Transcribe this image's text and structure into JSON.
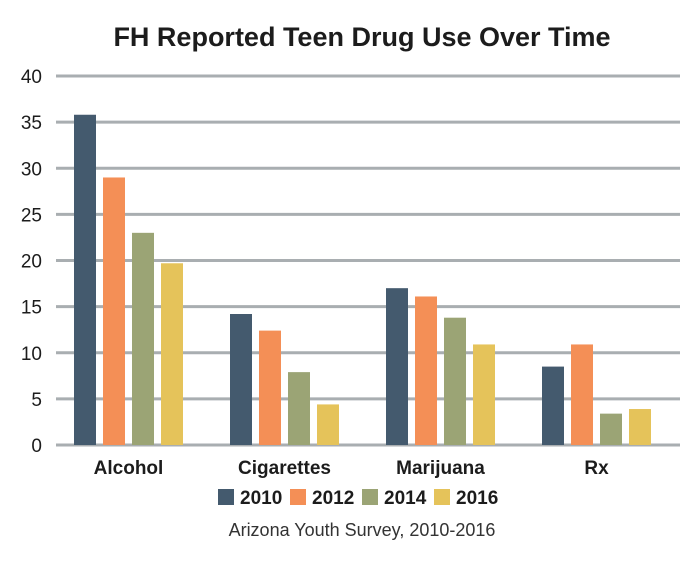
{
  "chart_data": {
    "type": "bar",
    "title": "FH Reported Teen Drug Use Over Time",
    "categories": [
      "Alcohol",
      "Cigarettes",
      "Marijuana",
      "Rx"
    ],
    "series": [
      {
        "name": "2010",
        "color": "#445a6e",
        "values": [
          35.8,
          14.2,
          17,
          8.5
        ]
      },
      {
        "name": "2012",
        "color": "#f48f56",
        "values": [
          29,
          12.4,
          16.1,
          10.9
        ]
      },
      {
        "name": "2014",
        "color": "#9ba475",
        "values": [
          23,
          7.9,
          13.8,
          3.4
        ]
      },
      {
        "name": "2016",
        "color": "#e5c35a",
        "values": [
          19.7,
          4.4,
          10.9,
          3.9
        ]
      }
    ],
    "ylim": [
      0,
      40
    ],
    "yticks": [
      0,
      5,
      10,
      15,
      20,
      25,
      30,
      35,
      40
    ],
    "grid": true,
    "legend": "bottom",
    "source": "Arizona Youth Survey, 2010-2016"
  }
}
